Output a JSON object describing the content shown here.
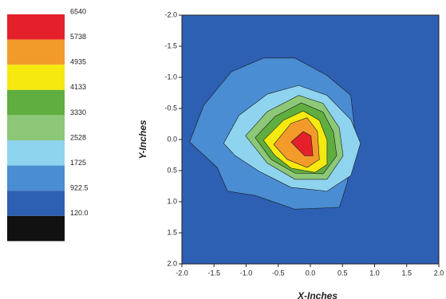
{
  "chart_data": {
    "type": "contour",
    "xlabel": "X-Inches",
    "ylabel": "Y-Inches",
    "xlim": [
      -2,
      2
    ],
    "ylim": [
      2,
      -2
    ],
    "xticks": [
      {
        "value": -2,
        "label": "-2.0"
      },
      -1.5,
      {
        "value": -1,
        "label": "-1.0"
      },
      -0.5,
      {
        "value": 0,
        "label": "0.0"
      },
      0.5,
      {
        "value": 1,
        "label": "1.0"
      },
      1.5,
      {
        "value": 2,
        "label": "2.0"
      }
    ],
    "yticks": [
      {
        "value": -2,
        "label": "-2.0"
      },
      -1.5,
      {
        "value": -1,
        "label": "-1.0"
      },
      -0.5,
      {
        "value": 0,
        "label": "0.0"
      },
      0.5,
      {
        "value": 1,
        "label": "1.0"
      },
      1.5,
      {
        "value": 2,
        "label": "2.0"
      }
    ],
    "background": "#2d5fb3",
    "levels": [
      {
        "value": 6540,
        "color": "#e4202a",
        "x": [
          -0.3,
          -0.11,
          0.01,
          0.04,
          -0.09
        ],
        "y": [
          0.04,
          -0.13,
          -0.06,
          0.26,
          0.26
        ]
      },
      {
        "value": 5738,
        "color": "#f39b2a",
        "x": [
          -0.57,
          -0.3,
          -0.05,
          0.11,
          0.14,
          -0.05,
          -0.36
        ],
        "y": [
          0.08,
          -0.26,
          -0.35,
          -0.13,
          0.32,
          0.45,
          0.32
        ]
      },
      {
        "value": 4935,
        "color": "#f5e90f",
        "x": [
          -0.73,
          -0.42,
          -0.11,
          0.14,
          0.26,
          0.26,
          0.07,
          -0.3,
          -0.55
        ],
        "y": [
          0.01,
          -0.31,
          -0.46,
          -0.31,
          0.01,
          0.4,
          0.53,
          0.46,
          0.26
        ]
      },
      {
        "value": 4133,
        "color": "#5fae3f",
        "x": [
          -0.86,
          -0.55,
          -0.14,
          0.2,
          0.36,
          0.41,
          0.2,
          -0.24,
          -0.61
        ],
        "y": [
          -0.03,
          -0.37,
          -0.59,
          -0.44,
          -0.12,
          0.26,
          0.55,
          0.54,
          0.32
        ]
      },
      {
        "value": 3330,
        "color": "#8cc878",
        "x": [
          -1.01,
          -0.67,
          -0.18,
          0.2,
          0.45,
          0.51,
          0.26,
          -0.24,
          -0.67
        ],
        "y": [
          -0.06,
          -0.45,
          -0.71,
          -0.58,
          -0.19,
          0.26,
          0.64,
          0.64,
          0.38
        ]
      },
      {
        "value": 2528,
        "color": "#8fd4ee",
        "x": [
          -1.35,
          -1.11,
          -0.67,
          -0.18,
          0.26,
          0.63,
          0.78,
          0.63,
          0.26,
          -0.3,
          -0.8,
          -1.17
        ],
        "y": [
          0.06,
          -0.39,
          -0.73,
          -0.87,
          -0.71,
          -0.32,
          0.06,
          0.58,
          0.83,
          0.77,
          0.51,
          0.26
        ]
      },
      {
        "value": 1725,
        "color": "#4a8dd2",
        "x": [
          -1.88,
          -1.66,
          -1.23,
          -0.73,
          -0.24,
          0.26,
          0.63,
          0.7,
          0.57,
          0.45,
          -0.24,
          -0.86,
          -1.29,
          -1.45
        ],
        "y": [
          0.04,
          -0.55,
          -1.09,
          -1.31,
          -1.31,
          -1.03,
          -0.71,
          -0.06,
          0.71,
          1.09,
          1.12,
          0.9,
          0.83,
          0.45
        ]
      },
      {
        "value": 922.5,
        "color": "#2d5fb3"
      },
      {
        "value": 120,
        "label": "120.0",
        "color": "#111111"
      }
    ]
  }
}
